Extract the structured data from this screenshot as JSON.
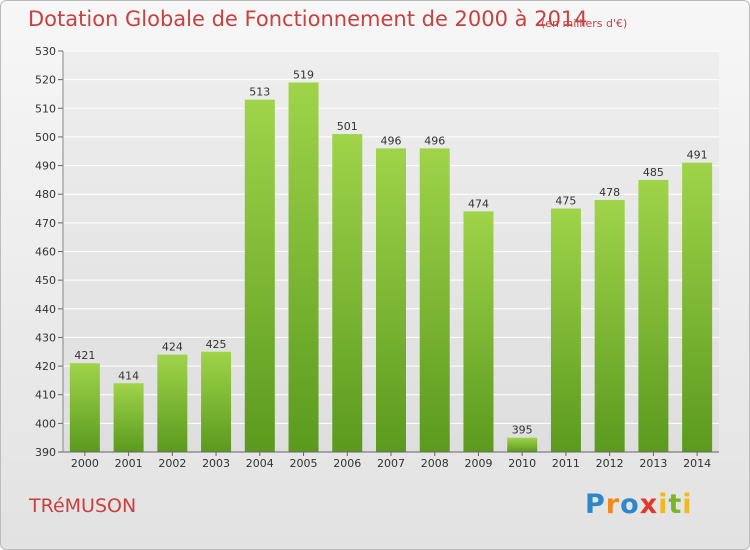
{
  "header": {
    "title": "Dotation Globale de Fonctionnement de 2000 à 2014",
    "unit_note": "(en milliers d'€)"
  },
  "footer": {
    "commune": "TRéMUSON",
    "logo_text": "Proxiti"
  },
  "colors": {
    "bar_light": "#9fd44a",
    "bar_dark": "#5b9a1e",
    "title": "#c8413f",
    "grid": "#ffffff",
    "text": "#333333"
  },
  "chart_data": {
    "type": "bar",
    "title": "Dotation Globale de Fonctionnement de 2000 à 2014",
    "subtitle": "(en milliers d'€)",
    "categories": [
      "2000",
      "2001",
      "2002",
      "2003",
      "2004",
      "2005",
      "2006",
      "2007",
      "2008",
      "2009",
      "2010",
      "2011",
      "2012",
      "2013",
      "2014"
    ],
    "values": [
      421,
      414,
      424,
      425,
      513,
      519,
      501,
      496,
      496,
      474,
      395,
      475,
      478,
      485,
      491
    ],
    "ylim": [
      390,
      530
    ],
    "yticks": [
      390,
      400,
      410,
      420,
      430,
      440,
      450,
      460,
      470,
      480,
      490,
      500,
      510,
      520,
      530
    ],
    "grid": true,
    "legend": "none"
  }
}
